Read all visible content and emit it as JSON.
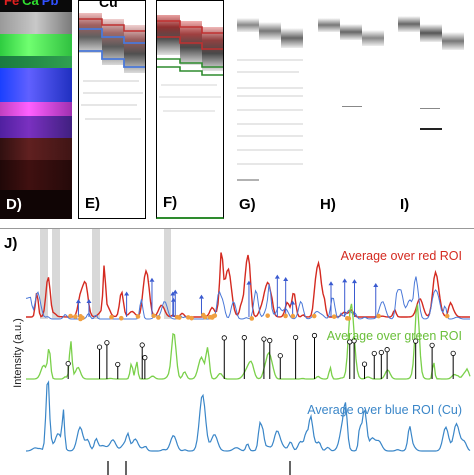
{
  "panels": {
    "d": {
      "label": "D)",
      "title_parts": [
        {
          "text": "Fe",
          "color": "#e02020"
        },
        {
          "text": "Ca",
          "color": "#30e030"
        },
        {
          "text": "Pb",
          "color": "#3050ff"
        }
      ]
    },
    "e": {
      "label": "E)",
      "title": "Cu"
    },
    "f": {
      "label": "F)"
    },
    "g": {
      "label": "G)"
    },
    "h": {
      "label": "H)"
    },
    "i": {
      "label": "I)"
    }
  },
  "panel_j": {
    "label": "J)",
    "ylabel": "Intensity (a.u.)",
    "traces": {
      "red": {
        "label": "Average over red ROI",
        "color": "#d42a20"
      },
      "green": {
        "label": "Average over green ROI",
        "color": "#6abf3a"
      },
      "blue": {
        "label": "Average over blue ROI (Cu)",
        "color": "#3a86c8"
      }
    }
  },
  "colors": {
    "red_roi": "#d42a20",
    "green_roi": "#2e8b2e",
    "blue_roi": "#4a78d8"
  }
}
